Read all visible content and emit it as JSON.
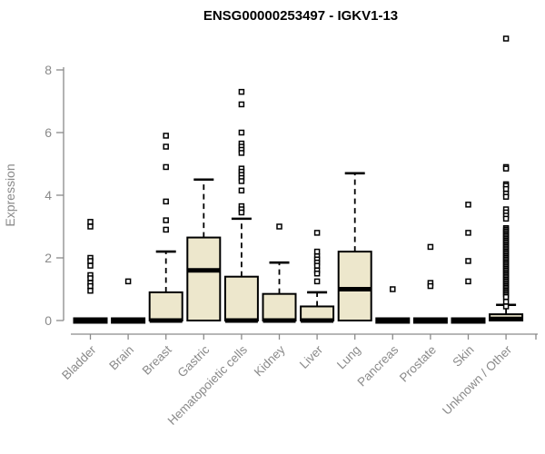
{
  "chart_data": {
    "type": "boxplot",
    "title": "ENSG00000253497 - IGKV1-13",
    "ylabel": "Expression",
    "yticks": [
      0,
      2,
      4,
      6,
      8
    ],
    "ylim": [
      0,
      9.3
    ],
    "grid": false,
    "legend": "none",
    "colors": {
      "box_fill": "#EDE7CC",
      "box_stroke": "#000000",
      "axis": "#8a8a8a",
      "title": "#000000"
    },
    "categories": [
      "Bladder",
      "Brain",
      "Breast",
      "Gastric",
      "Hematopoietic cells",
      "Kidney",
      "Liver",
      "Lung",
      "Pancreas",
      "Prostate",
      "Skin",
      "Unknown / Other"
    ],
    "series": [
      {
        "name": "Bladder",
        "q1": 0,
        "median": 0,
        "q3": 0,
        "whisker_low": 0,
        "whisker_high": 0,
        "outliers": [
          3.15,
          3.0,
          2.0,
          1.9,
          1.75,
          1.45,
          1.35,
          1.2,
          1.1,
          0.95
        ]
      },
      {
        "name": "Brain",
        "q1": 0,
        "median": 0,
        "q3": 0,
        "whisker_low": 0,
        "whisker_high": 0,
        "outliers": [
          1.25
        ]
      },
      {
        "name": "Breast",
        "q1": 0,
        "median": 0,
        "q3": 0.9,
        "whisker_low": 0,
        "whisker_high": 2.2,
        "outliers": [
          5.9,
          5.55,
          4.9,
          3.8,
          3.2,
          2.9
        ]
      },
      {
        "name": "Gastric",
        "q1": 0,
        "median": 1.6,
        "q3": 2.65,
        "whisker_low": 0,
        "whisker_high": 4.5,
        "outliers": []
      },
      {
        "name": "Hematopoietic cells",
        "q1": 0,
        "median": 0,
        "q3": 1.4,
        "whisker_low": 0,
        "whisker_high": 3.25,
        "outliers": [
          7.3,
          6.9,
          6.0,
          5.65,
          5.55,
          5.45,
          5.35,
          4.85,
          4.75,
          4.65,
          4.55,
          4.45,
          4.15,
          3.65,
          3.55,
          3.45
        ]
      },
      {
        "name": "Kidney",
        "q1": 0,
        "median": 0,
        "q3": 0.85,
        "whisker_low": 0,
        "whisker_high": 1.85,
        "outliers": [
          3.0
        ]
      },
      {
        "name": "Liver",
        "q1": 0,
        "median": 0,
        "q3": 0.45,
        "whisker_low": 0,
        "whisker_high": 0.9,
        "outliers": [
          2.8,
          2.2,
          2.05,
          1.95,
          1.85,
          1.75,
          1.6,
          1.5,
          1.25
        ]
      },
      {
        "name": "Lung",
        "q1": 0,
        "median": 1.0,
        "q3": 2.2,
        "whisker_low": 0,
        "whisker_high": 4.7,
        "outliers": []
      },
      {
        "name": "Pancreas",
        "q1": 0,
        "median": 0,
        "q3": 0,
        "whisker_low": 0,
        "whisker_high": 0,
        "outliers": [
          1.0
        ]
      },
      {
        "name": "Prostate",
        "q1": 0,
        "median": 0,
        "q3": 0,
        "whisker_low": 0,
        "whisker_high": 0,
        "outliers": [
          2.35,
          1.2,
          1.1
        ]
      },
      {
        "name": "Skin",
        "q1": 0,
        "median": 0,
        "q3": 0,
        "whisker_low": 0,
        "whisker_high": 0,
        "outliers": [
          3.7,
          2.8,
          1.9,
          1.25
        ]
      },
      {
        "name": "Unknown / Other",
        "q1": 0,
        "median": 0.05,
        "q3": 0.2,
        "whisker_low": 0,
        "whisker_high": 0.5,
        "outliers": [
          9.0,
          4.9,
          4.85,
          4.35,
          4.3,
          4.2,
          4.05,
          3.95,
          3.55,
          3.45,
          3.35,
          3.25,
          2.95,
          2.9,
          2.85,
          2.8,
          2.75,
          2.7,
          2.65,
          2.6,
          2.55,
          2.5,
          2.45,
          2.4,
          2.35,
          2.3,
          2.25,
          2.2,
          2.15,
          2.1,
          2.05,
          2.0,
          1.95,
          1.9,
          1.85,
          1.8,
          1.75,
          1.7,
          1.65,
          1.6,
          1.55,
          1.5,
          1.45,
          1.4,
          1.35,
          1.3,
          1.25,
          1.2,
          1.15,
          1.1,
          1.05,
          1.0,
          0.95,
          0.9,
          0.85,
          0.8,
          0.75,
          0.6,
          0.45
        ]
      }
    ]
  }
}
